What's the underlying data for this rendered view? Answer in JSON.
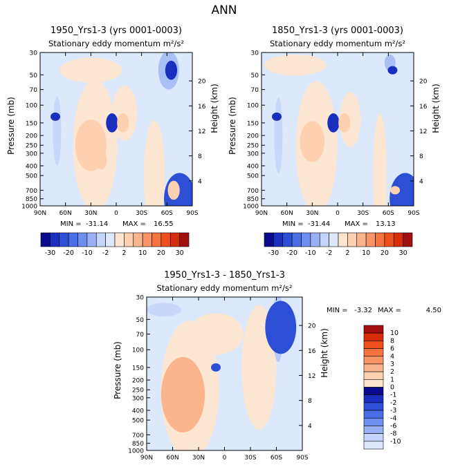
{
  "page_title": "ANN",
  "colors": {
    "neg": [
      "#0a0a8c",
      "#1a2fbf",
      "#2d4fd6",
      "#4a6ee6",
      "#6f8ff0",
      "#9ab0f5",
      "#c4d4fb",
      "#dfe9fd"
    ],
    "pos": [
      "#fde5d0",
      "#fcd0b0",
      "#fbb58c",
      "#f89466",
      "#f5733f",
      "#ee4f1c",
      "#d82d0a",
      "#a00e0e"
    ]
  },
  "chart_data": [
    {
      "id": "p1",
      "type": "heatmap",
      "title": "1950_Yrs1-3 (yrs 0001-0003)",
      "subtitle": "Stationary eddy momentum  m²/s²",
      "xlabel": "",
      "ylabel": "Pressure (mb)",
      "y2label": "Height (km)",
      "x_ticks": [
        "90N",
        "60N",
        "30N",
        "0",
        "30S",
        "60S",
        "90S"
      ],
      "x_range": [
        90,
        -90
      ],
      "y_ticks": [
        "30",
        "50",
        "70",
        "100",
        "150",
        "200",
        "250",
        "300",
        "400",
        "500",
        "700",
        "850",
        "1000"
      ],
      "y_tick_values": [
        30,
        50,
        70,
        100,
        150,
        200,
        250,
        300,
        400,
        500,
        700,
        850,
        1000
      ],
      "y_range": [
        30,
        1000
      ],
      "y2_ticks": [
        "4",
        "8",
        "12",
        "16",
        "20"
      ],
      "y2_tick_values": [
        4,
        8,
        12,
        16,
        20
      ],
      "stats": {
        "min_label": "MIN =",
        "min": "-31.14",
        "max_label": "MAX =",
        "max": "16.55"
      },
      "colorbar": {
        "levels": [
          "-30",
          "-20",
          "-10",
          "-2",
          "2",
          "10",
          "20",
          "30"
        ]
      },
      "features": [
        {
          "lat": 30,
          "p": 250,
          "value": 16.55
        },
        {
          "lat": 18,
          "p": 350,
          "value": 6
        },
        {
          "lat": 5,
          "p": 150,
          "value": -8
        },
        {
          "lat": -8,
          "p": 150,
          "value": 8
        },
        {
          "lat": 72,
          "p": 130,
          "value": -2
        },
        {
          "lat": -65,
          "p": 45,
          "value": -6
        },
        {
          "lat": -75,
          "p": 850,
          "value": -31.14
        },
        {
          "lat": -68,
          "p": 700,
          "value": 5
        }
      ]
    },
    {
      "id": "p2",
      "type": "heatmap",
      "title": "1850_Yrs1-3 (yrs 0001-0003)",
      "subtitle": "Stationary eddy momentum  m²/s²",
      "xlabel": "",
      "ylabel": "Pressure (mb)",
      "y2label": "Height (km)",
      "x_ticks": [
        "90N",
        "60N",
        "30N",
        "0",
        "30S",
        "60S",
        "90S"
      ],
      "x_range": [
        90,
        -90
      ],
      "y_ticks": [
        "30",
        "50",
        "70",
        "100",
        "150",
        "200",
        "250",
        "300",
        "400",
        "500",
        "700",
        "850",
        "1000"
      ],
      "y_tick_values": [
        30,
        50,
        70,
        100,
        150,
        200,
        250,
        300,
        400,
        500,
        700,
        850,
        1000
      ],
      "y_range": [
        30,
        1000
      ],
      "y2_ticks": [
        "4",
        "8",
        "12",
        "16",
        "20"
      ],
      "y2_tick_values": [
        4,
        8,
        12,
        16,
        20
      ],
      "stats": {
        "min_label": "MIN =",
        "min": "-31.44",
        "max_label": "MAX =",
        "max": "13.13"
      },
      "colorbar": {
        "levels": [
          "-30",
          "-20",
          "-10",
          "-2",
          "2",
          "10",
          "20",
          "30"
        ]
      },
      "features": [
        {
          "lat": 30,
          "p": 230,
          "value": 13.13
        },
        {
          "lat": 5,
          "p": 150,
          "value": -6
        },
        {
          "lat": -8,
          "p": 150,
          "value": 7
        },
        {
          "lat": 72,
          "p": 130,
          "value": -2
        },
        {
          "lat": -65,
          "p": 45,
          "value": -4
        },
        {
          "lat": -80,
          "p": 850,
          "value": -31.44
        },
        {
          "lat": -68,
          "p": 700,
          "value": 4
        }
      ]
    },
    {
      "id": "p3",
      "type": "heatmap",
      "title": "1950_Yrs1-3 - 1850_Yrs1-3",
      "subtitle": "Stationary eddy momentum  m²/s²",
      "xlabel": "",
      "ylabel": "Pressure (mb)",
      "y2label": "Height (km)",
      "x_ticks": [
        "90N",
        "60N",
        "30N",
        "0",
        "30S",
        "60S",
        "90S"
      ],
      "x_range": [
        90,
        -90
      ],
      "y_ticks": [
        "30",
        "50",
        "70",
        "100",
        "150",
        "200",
        "250",
        "300",
        "400",
        "500",
        "700",
        "850",
        "1000"
      ],
      "y_tick_values": [
        30,
        50,
        70,
        100,
        150,
        200,
        250,
        300,
        400,
        500,
        700,
        850,
        1000
      ],
      "y_range": [
        30,
        1000
      ],
      "y2_ticks": [
        "4",
        "8",
        "12",
        "16",
        "20"
      ],
      "y2_tick_values": [
        4,
        8,
        12,
        16,
        20
      ],
      "stats": {
        "min_label": "MIN =",
        "min": "-3.32",
        "max_label": "MAX =",
        "max": "4.50"
      },
      "colorbar": {
        "levels": [
          "10",
          "8",
          "6",
          "4",
          "3",
          "2",
          "1",
          "0",
          "-1",
          "-2",
          "-3",
          "-4",
          "-6",
          "-8",
          "-10"
        ]
      },
      "features": [
        {
          "lat": 48,
          "p": 280,
          "value": 4.5
        },
        {
          "lat": 45,
          "p": 300,
          "value": 2
        },
        {
          "lat": 10,
          "p": 150,
          "value": -1
        },
        {
          "lat": -65,
          "p": 60,
          "value": -3.32
        }
      ]
    }
  ]
}
